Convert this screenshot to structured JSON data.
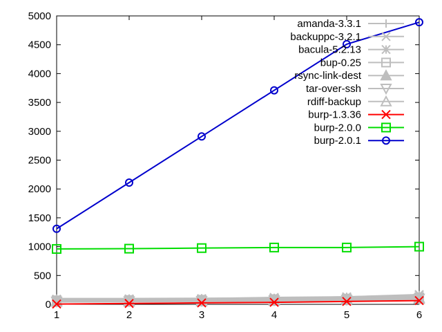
{
  "chart_data": {
    "type": "line",
    "title": "",
    "xlabel": "",
    "ylabel": "",
    "x": [
      1,
      2,
      3,
      4,
      5,
      6
    ],
    "xlim": [
      1,
      6
    ],
    "ylim": [
      0,
      5000
    ],
    "xticks": [
      1,
      2,
      3,
      4,
      5,
      6
    ],
    "yticks": [
      0,
      500,
      1000,
      1500,
      2000,
      2500,
      3000,
      3500,
      4000,
      4500,
      5000
    ],
    "grid": false,
    "legend_position": "top-right",
    "series": [
      {
        "name": "amanda-3.3.1",
        "marker": "plus",
        "color": "#bebebe",
        "values": [
          100,
          100,
          105,
          110,
          115,
          140
        ]
      },
      {
        "name": "backuppc-3.2.1",
        "marker": "cross",
        "color": "#bebebe",
        "values": [
          90,
          95,
          100,
          120,
          130,
          170
        ]
      },
      {
        "name": "bacula-5.2.13",
        "marker": "star",
        "color": "#bebebe",
        "values": [
          80,
          85,
          95,
          110,
          130,
          160
        ]
      },
      {
        "name": "bup-0.25",
        "marker": "square",
        "color": "#bebebe",
        "values": [
          70,
          75,
          80,
          90,
          100,
          120
        ]
      },
      {
        "name": "rsync-link-dest",
        "marker": "triangle-filled",
        "color": "#bebebe",
        "values": [
          60,
          65,
          70,
          80,
          90,
          110
        ]
      },
      {
        "name": "tar-over-ssh",
        "marker": "triangle-down",
        "color": "#bebebe",
        "values": [
          50,
          55,
          60,
          70,
          80,
          100
        ]
      },
      {
        "name": "rdiff-backup",
        "marker": "triangle-up",
        "color": "#bebebe",
        "values": [
          40,
          45,
          50,
          60,
          70,
          90
        ]
      },
      {
        "name": "burp-1.3.36",
        "marker": "cross",
        "color": "#ff0000",
        "values": [
          5,
          15,
          25,
          35,
          50,
          65
        ]
      },
      {
        "name": "burp-2.0.0",
        "marker": "square",
        "color": "#00dd00",
        "values": [
          960,
          965,
          975,
          985,
          985,
          1000
        ]
      },
      {
        "name": "burp-2.0.1",
        "marker": "circle",
        "color": "#0000cc",
        "values": [
          1310,
          2110,
          2910,
          3710,
          4510,
          4890
        ]
      }
    ]
  }
}
